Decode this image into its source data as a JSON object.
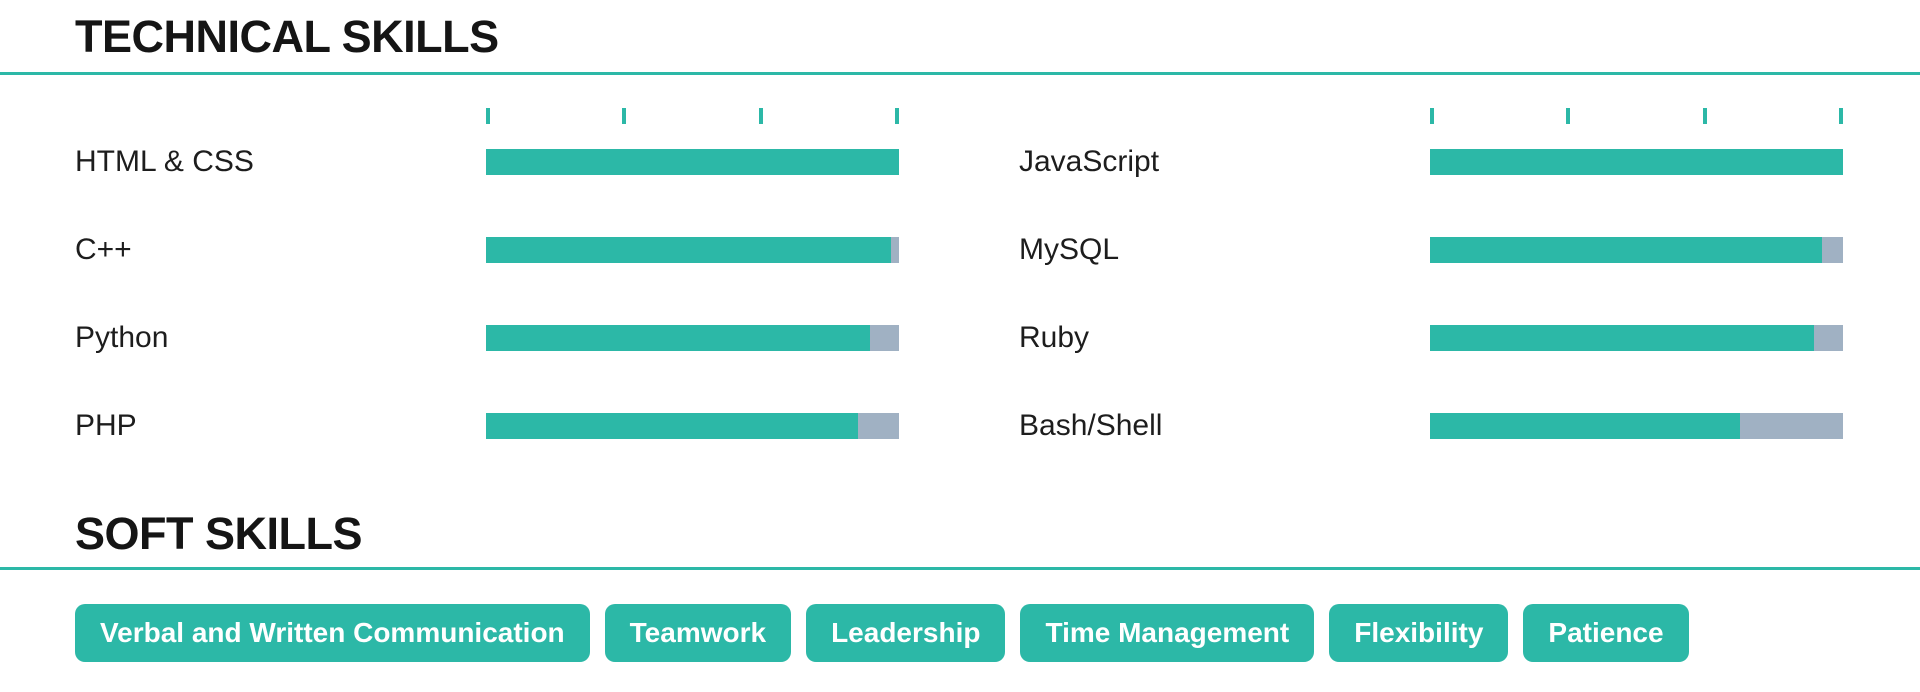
{
  "colors": {
    "background": "#ffffff",
    "accent": "#2cb8a7",
    "bar_remainder": "#a0b1c3",
    "heading_text": "#151515",
    "label_text": "#1d1d1d",
    "pill_text": "#ffffff"
  },
  "technical_skills": {
    "title": "TECHNICAL SKILLS",
    "scale_tick_count": 4,
    "columns": [
      {
        "skills": [
          {
            "name": "HTML & CSS",
            "level_percent": 100
          },
          {
            "name": "C++",
            "level_percent": 98
          },
          {
            "name": "Python",
            "level_percent": 93
          },
          {
            "name": "PHP",
            "level_percent": 90
          }
        ]
      },
      {
        "skills": [
          {
            "name": "JavaScript",
            "level_percent": 100
          },
          {
            "name": "MySQL",
            "level_percent": 95
          },
          {
            "name": "Ruby",
            "level_percent": 93
          },
          {
            "name": "Bash/Shell",
            "level_percent": 75
          }
        ]
      }
    ]
  },
  "soft_skills": {
    "title": "SOFT SKILLS",
    "badges": [
      "Verbal and Written Communication",
      "Teamwork",
      "Leadership",
      "Time Management",
      "Flexibility",
      "Patience"
    ]
  }
}
